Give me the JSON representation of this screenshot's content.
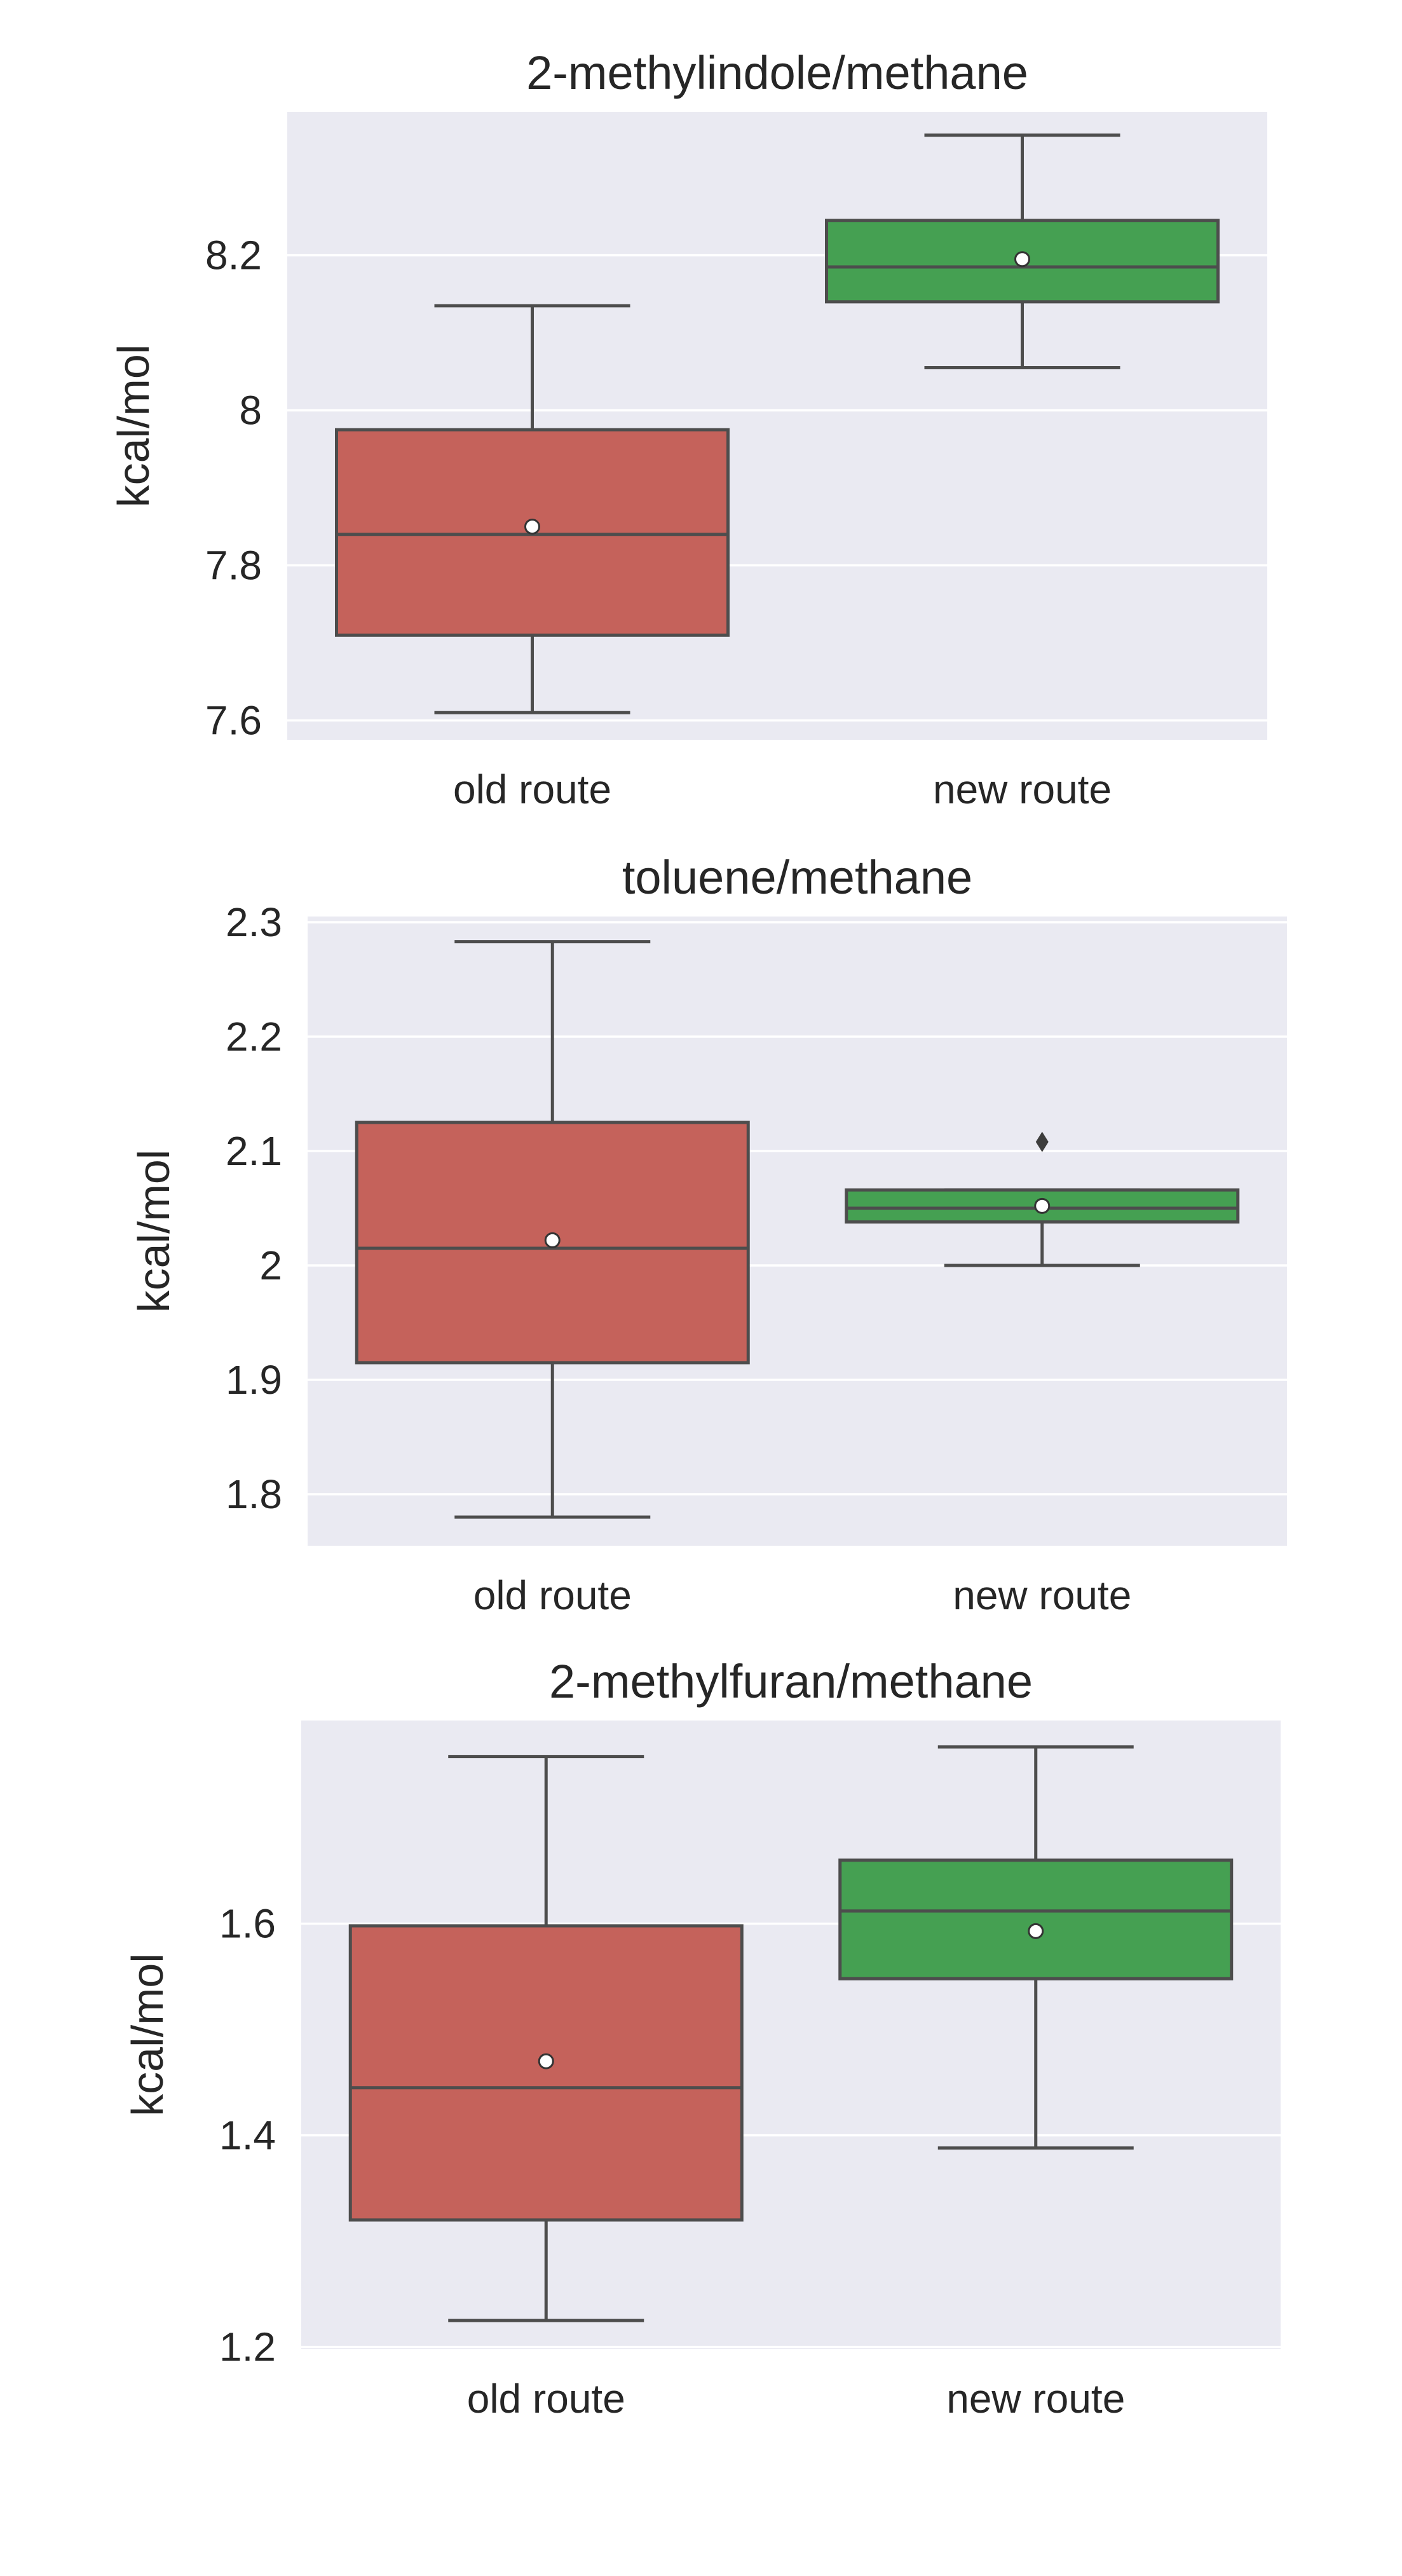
{
  "chart_data": [
    {
      "type": "box",
      "title": "2-methylindole/methane",
      "ylabel": "kcal/mol",
      "xlabel": "",
      "categories": [
        "old route",
        "new route"
      ],
      "ylim": [
        7.575,
        8.385
      ],
      "yticks": [
        7.6,
        7.8,
        8.0,
        8.2
      ],
      "grid": true,
      "colors": [
        "#c5625b",
        "#45a052"
      ],
      "boxes": [
        {
          "category": "old route",
          "whisker_low": 7.61,
          "q1": 7.71,
          "median": 7.84,
          "q3": 7.975,
          "whisker_high": 8.135,
          "mean": 7.85,
          "outliers": []
        },
        {
          "category": "new route",
          "whisker_low": 8.055,
          "q1": 8.14,
          "median": 8.185,
          "q3": 8.245,
          "whisker_high": 8.355,
          "mean": 8.195,
          "outliers": []
        }
      ]
    },
    {
      "type": "box",
      "title": "toluene/methane",
      "ylabel": "kcal/mol",
      "xlabel": "",
      "categories": [
        "old route",
        "new route"
      ],
      "ylim": [
        1.755,
        2.305
      ],
      "yticks": [
        1.8,
        1.9,
        2.0,
        2.1,
        2.2,
        2.3
      ],
      "grid": true,
      "colors": [
        "#c5625b",
        "#45a052"
      ],
      "boxes": [
        {
          "category": "old route",
          "whisker_low": 1.78,
          "q1": 1.915,
          "median": 2.015,
          "q3": 2.125,
          "whisker_high": 2.283,
          "mean": 2.022,
          "outliers": []
        },
        {
          "category": "new route",
          "whisker_low": 2.0,
          "q1": 2.038,
          "median": 2.05,
          "q3": 2.066,
          "whisker_high": 2.066,
          "mean": 2.052,
          "outliers": [
            2.108
          ]
        }
      ]
    },
    {
      "type": "box",
      "title": "2-methylfuran/methane",
      "ylabel": "kcal/mol",
      "xlabel": "",
      "categories": [
        "old route",
        "new route"
      ],
      "ylim": [
        1.198,
        1.792
      ],
      "yticks": [
        1.2,
        1.4,
        1.6
      ],
      "grid": true,
      "colors": [
        "#c5625b",
        "#45a052"
      ],
      "boxes": [
        {
          "category": "old route",
          "whisker_low": 1.225,
          "q1": 1.32,
          "median": 1.445,
          "q3": 1.598,
          "whisker_high": 1.758,
          "mean": 1.47,
          "outliers": []
        },
        {
          "category": "new route",
          "whisker_low": 1.388,
          "q1": 1.548,
          "median": 1.612,
          "q3": 1.66,
          "whisker_high": 1.767,
          "mean": 1.593,
          "outliers": []
        }
      ]
    }
  ]
}
